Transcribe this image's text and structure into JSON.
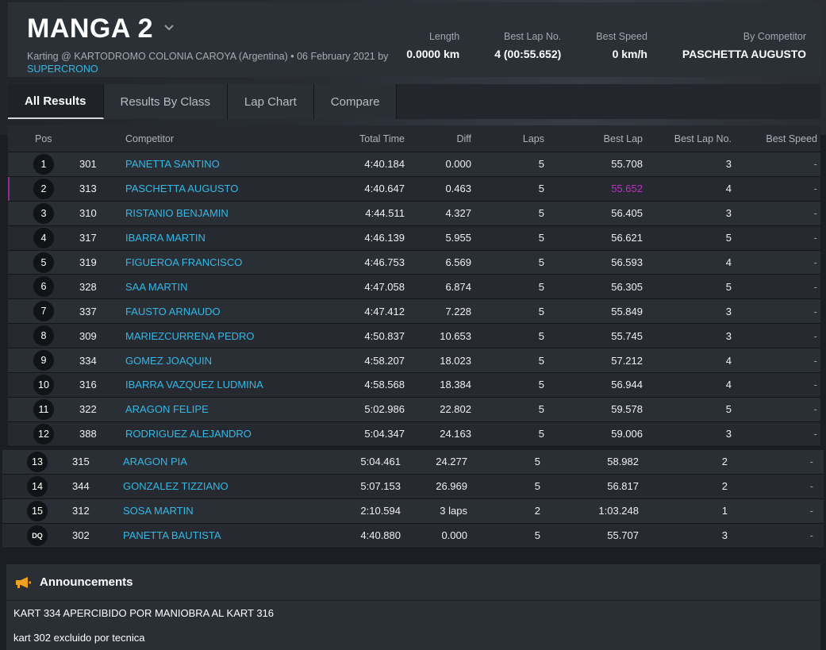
{
  "header": {
    "title": "MANGA 2",
    "subtitle": "Karting @ KARTODROMO COLONIA CAROYA (Argentina) • 06 February 2021 by",
    "subtitle_link": "SUPERCRONO",
    "stats": [
      {
        "label": "Length",
        "value": "0.0000 km"
      },
      {
        "label": "Best Lap No.",
        "value": "4 (00:55.652)"
      },
      {
        "label": "Best Speed",
        "value": "0 km/h"
      },
      {
        "label": "By Competitor",
        "value": "PASCHETTA AUGUSTO"
      }
    ]
  },
  "tabs": [
    "All Results",
    "Results By Class",
    "Lap Chart",
    "Compare"
  ],
  "columns": {
    "pos": "Pos",
    "competitor": "Competitor",
    "total_time": "Total Time",
    "diff": "Diff",
    "laps": "Laps",
    "best_lap": "Best Lap",
    "best_lap_no": "Best Lap No.",
    "best_speed": "Best Speed"
  },
  "rows": [
    {
      "pos": "1",
      "num": "301",
      "name": "PANETTA SANTINO",
      "total": "4:40.184",
      "diff": "0.000",
      "laps": "5",
      "best": "55.708",
      "bestno": "3",
      "speed": "-"
    },
    {
      "pos": "2",
      "num": "313",
      "name": "PASCHETTA AUGUSTO",
      "total": "4:40.647",
      "diff": "0.463",
      "laps": "5",
      "best": "55.652",
      "bestno": "4",
      "speed": "-"
    },
    {
      "pos": "3",
      "num": "310",
      "name": "RISTANIO BENJAMIN",
      "total": "4:44.511",
      "diff": "4.327",
      "laps": "5",
      "best": "56.405",
      "bestno": "3",
      "speed": "-"
    },
    {
      "pos": "4",
      "num": "317",
      "name": "IBARRA MARTIN",
      "total": "4:46.139",
      "diff": "5.955",
      "laps": "5",
      "best": "56.621",
      "bestno": "5",
      "speed": "-"
    },
    {
      "pos": "5",
      "num": "319",
      "name": "FIGUEROA FRANCISCO",
      "total": "4:46.753",
      "diff": "6.569",
      "laps": "5",
      "best": "56.593",
      "bestno": "4",
      "speed": "-"
    },
    {
      "pos": "6",
      "num": "328",
      "name": "SAA MARTIN",
      "total": "4:47.058",
      "diff": "6.874",
      "laps": "5",
      "best": "56.305",
      "bestno": "5",
      "speed": "-"
    },
    {
      "pos": "7",
      "num": "337",
      "name": "FAUSTO ARNAUDO",
      "total": "4:47.412",
      "diff": "7.228",
      "laps": "5",
      "best": "55.849",
      "bestno": "3",
      "speed": "-"
    },
    {
      "pos": "8",
      "num": "309",
      "name": "MARIEZCURRENA PEDRO",
      "total": "4:50.837",
      "diff": "10.653",
      "laps": "5",
      "best": "55.745",
      "bestno": "3",
      "speed": "-"
    },
    {
      "pos": "9",
      "num": "334",
      "name": "GOMEZ JOAQUIN",
      "total": "4:58.207",
      "diff": "18.023",
      "laps": "5",
      "best": "57.212",
      "bestno": "4",
      "speed": "-"
    },
    {
      "pos": "10",
      "num": "316",
      "name": "IBARRA VAZQUEZ LUDMINA",
      "total": "4:58.568",
      "diff": "18.384",
      "laps": "5",
      "best": "56.944",
      "bestno": "4",
      "speed": "-"
    },
    {
      "pos": "11",
      "num": "322",
      "name": "ARAGON FELIPE",
      "total": "5:02.986",
      "diff": "22.802",
      "laps": "5",
      "best": "59.578",
      "bestno": "5",
      "speed": "-"
    },
    {
      "pos": "12",
      "num": "388",
      "name": "RODRIGUEZ ALEJANDRO",
      "total": "5:04.347",
      "diff": "24.163",
      "laps": "5",
      "best": "59.006",
      "bestno": "3",
      "speed": "-"
    }
  ],
  "rows2": [
    {
      "pos": "13",
      "num": "315",
      "name": "ARAGON PIA",
      "total": "5:04.461",
      "diff": "24.277",
      "laps": "5",
      "best": "58.982",
      "bestno": "2",
      "speed": "-"
    },
    {
      "pos": "14",
      "num": "344",
      "name": "GONZALEZ TIZZIANO",
      "total": "5:07.153",
      "diff": "26.969",
      "laps": "5",
      "best": "56.817",
      "bestno": "2",
      "speed": "-"
    },
    {
      "pos": "15",
      "num": "312",
      "name": "SOSA MARTIN",
      "total": "2:10.594",
      "diff": "3 laps",
      "laps": "2",
      "best": "1:03.248",
      "bestno": "1",
      "speed": "-"
    },
    {
      "pos": "DQ",
      "num": "302",
      "name": "PANETTA BAUTISTA",
      "total": "4:40.880",
      "diff": "0.000",
      "laps": "5",
      "best": "55.707",
      "bestno": "3",
      "speed": "-"
    }
  ],
  "announcements": {
    "title": "Announcements",
    "items": [
      "KART 334 APERCIBIDO POR MANIOBRA AL KART 316",
      "kart 302 excluido por tecnica"
    ]
  },
  "colors": {
    "accent_link": "#34b8e5",
    "best_lap_highlight": "#c02fc4",
    "megaphone": "#f0a020"
  },
  "icons": [
    "chevron-down-icon",
    "megaphone-icon"
  ]
}
